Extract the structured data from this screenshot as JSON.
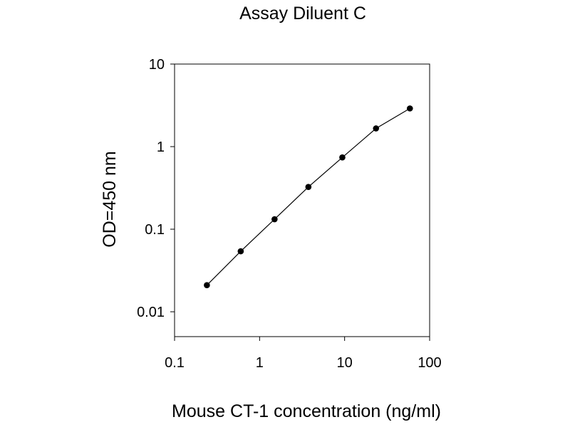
{
  "chart_data": {
    "type": "line",
    "title": "Assay Diluent C",
    "xlabel": "Mouse CT-1 concentration (ng/ml)",
    "ylabel": "OD=450 nm",
    "xscale": "log",
    "yscale": "log",
    "xlim": [
      0.1,
      100
    ],
    "ylim": [
      0.005,
      10
    ],
    "x_ticks": [
      0.1,
      1,
      10,
      100
    ],
    "x_tick_labels": [
      "0.1",
      "1",
      "10",
      "100"
    ],
    "y_ticks": [
      0.01,
      0.1,
      1,
      10
    ],
    "y_tick_labels": [
      "0.01",
      "0.1",
      "1",
      "10"
    ],
    "grid": false,
    "legend": "none",
    "line_color": "#000000",
    "marker": "filled-circle",
    "series": [
      {
        "x": [
          0.24,
          0.6,
          1.5,
          3.75,
          9.4,
          23.4,
          58.6
        ],
        "y": [
          0.021,
          0.054,
          0.132,
          0.325,
          0.74,
          1.66,
          2.9
        ]
      }
    ]
  }
}
